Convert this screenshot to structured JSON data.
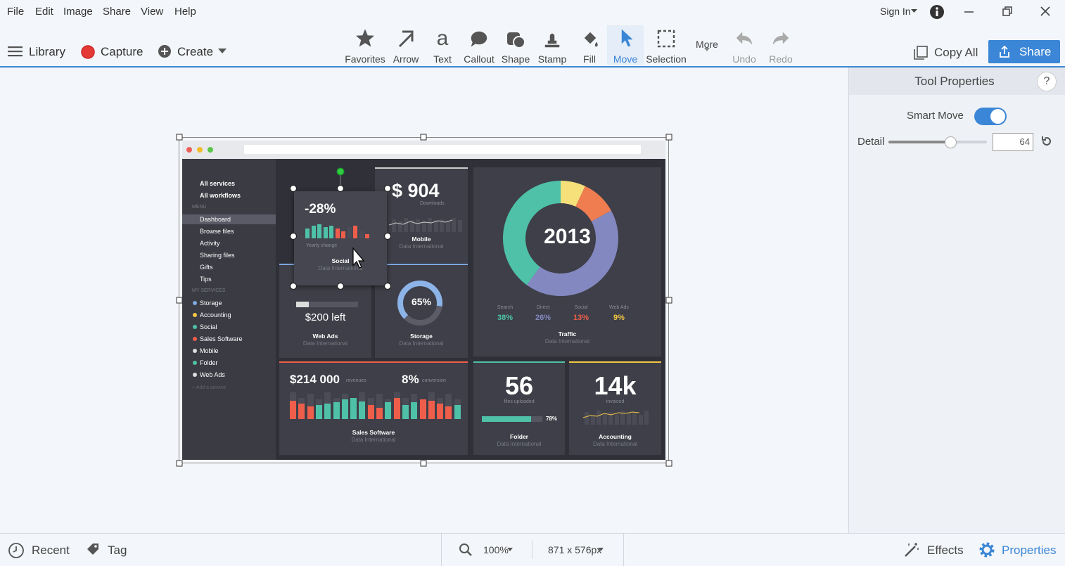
{
  "menu": {
    "items": [
      "File",
      "Edit",
      "Image",
      "Share",
      "View",
      "Help"
    ],
    "sign_in": "Sign In"
  },
  "toolbar": {
    "library": "Library",
    "capture": "Capture",
    "create": "Create",
    "tools": [
      "Favorites",
      "Arrow",
      "Text",
      "Callout",
      "Shape",
      "Stamp",
      "Fill",
      "Move",
      "Selection",
      "More",
      "Undo",
      "Redo"
    ],
    "copy_all": "Copy All",
    "share": "Share"
  },
  "properties": {
    "title": "Tool Properties",
    "help": "?",
    "smart_move": "Smart Move",
    "detail": "Detail",
    "detail_value": "64"
  },
  "status": {
    "recent": "Recent",
    "tag": "Tag",
    "zoom": "100%",
    "size": "871 x 576px",
    "effects": "Effects",
    "properties": "Properties"
  },
  "image": {
    "sidebar": {
      "top": [
        "All services",
        "All workflows"
      ],
      "menu_heading": "MENU",
      "menu": [
        "Dashboard",
        "Browse files",
        "Activity",
        "Sharing files",
        "Gifts",
        "Tips"
      ],
      "services_heading": "MY SERVICES",
      "services": [
        "Storage",
        "Accounting",
        "Social",
        "Sales Software",
        "Mobile",
        "Folder",
        "Web Ads"
      ],
      "add": "+ Add a service"
    },
    "social": {
      "value": "-28%",
      "caption": "Yearly change",
      "title": "Social",
      "source": "Data International"
    },
    "mobile": {
      "value": "$ 904",
      "caption": "Downloads",
      "title": "Mobile",
      "source": "Data International"
    },
    "web_ads": {
      "value": "$200 left",
      "title": "Web Ads",
      "source": "Data International"
    },
    "storage": {
      "value": "65%",
      "title": "Storage",
      "source": "Data International"
    },
    "traffic": {
      "year": "2013",
      "legend": [
        {
          "name": "Search",
          "value": "38%"
        },
        {
          "name": "Direct",
          "value": "26%"
        },
        {
          "name": "Social",
          "value": "13%"
        },
        {
          "name": "Web Ads",
          "value": "9%"
        }
      ],
      "title": "Traffic",
      "source": "Data International"
    },
    "sales": {
      "value": "$214 000",
      "value_caption": "revenues",
      "rate": "8%",
      "rate_caption": "conversion",
      "title": "Sales Software",
      "source": "Data International"
    },
    "folder": {
      "value": "56",
      "caption": "files uploaded",
      "percent": "78%",
      "title": "Folder",
      "source": "Data International"
    },
    "accounting": {
      "value": "14k",
      "caption": "invoiced",
      "title": "Accounting",
      "source": "Data International"
    }
  }
}
